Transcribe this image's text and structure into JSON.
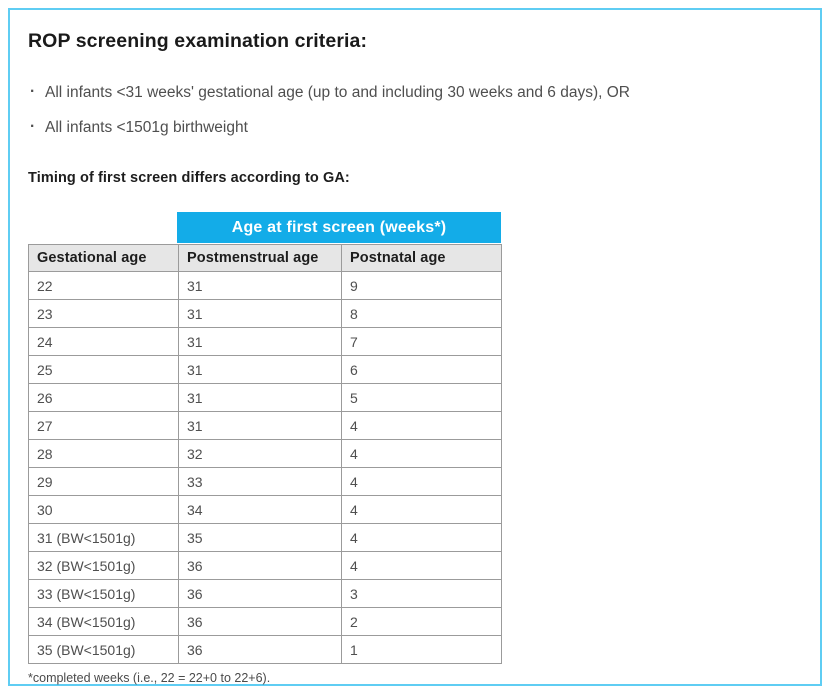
{
  "page": {
    "title": "ROP screening examination criteria:",
    "bullets": [
      "All infants <31 weeks' gestational age (up to and including 30 weeks and 6 days), OR",
      "All infants <1501g birthweight"
    ],
    "subtitle": "Timing of first screen differs according to GA:",
    "footnote": "*completed weeks (i.e., 22 = 22+0 to 22+6)."
  },
  "table": {
    "banner": "Age at first screen (weeks*)",
    "columns": [
      "Gestational age",
      "Postmenstrual age",
      "Postnatal age"
    ],
    "rows": [
      [
        "22",
        "31",
        "9"
      ],
      [
        "23",
        "31",
        "8"
      ],
      [
        "24",
        "31",
        "7"
      ],
      [
        "25",
        "31",
        "6"
      ],
      [
        "26",
        "31",
        "5"
      ],
      [
        "27",
        "31",
        "4"
      ],
      [
        "28",
        "32",
        "4"
      ],
      [
        "29",
        "33",
        "4"
      ],
      [
        "30",
        "34",
        "4"
      ],
      [
        "31 (BW<1501g)",
        "35",
        "4"
      ],
      [
        "32 (BW<1501g)",
        "36",
        "4"
      ],
      [
        "33 (BW<1501g)",
        "36",
        "3"
      ],
      [
        "34 (BW<1501g)",
        "36",
        "2"
      ],
      [
        "35 (BW<1501g)",
        "36",
        "1"
      ]
    ]
  },
  "colors": {
    "banner_cyan": "#13ace8",
    "frame_border_cyan": "#5fcdf3",
    "header_row_bg": "#e6e6e6",
    "table_border_gray": "#9b9b9b",
    "text_dark": "#1d1d1d",
    "text_gray": "#4f4f4f"
  }
}
